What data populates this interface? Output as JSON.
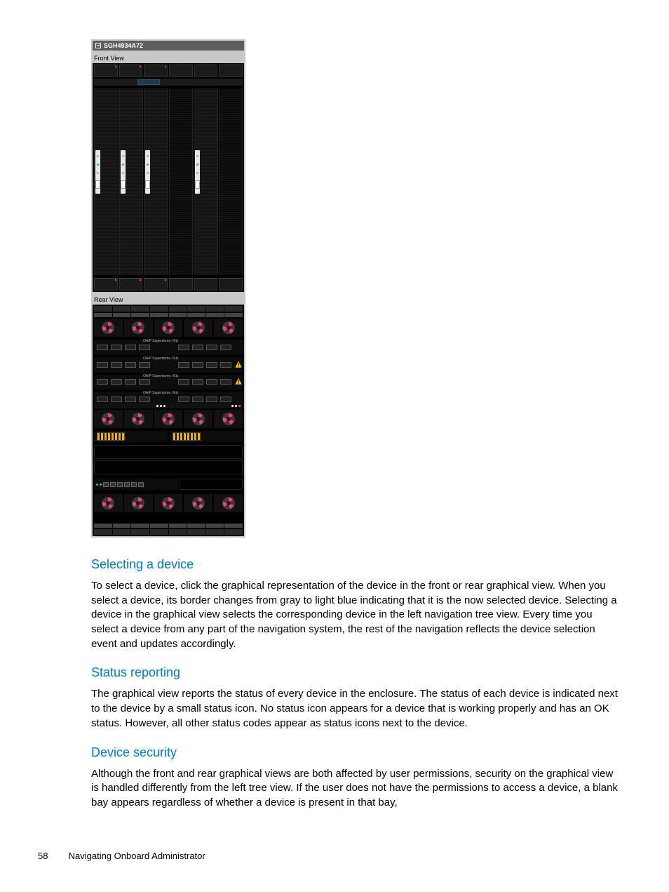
{
  "colors": {
    "heading": "#007dba",
    "body_text": "#000000",
    "page_bg": "#ffffff",
    "panel_bg": "#c8c8c8",
    "titlebar_bg": "#5e5e5e",
    "titlebar_text": "#ffffff",
    "enclosure_bg": "#000000",
    "led_green": "#2ecc40",
    "led_pink": "#ff3d7f",
    "led_blue": "#2aa7ff",
    "warn_fill": "#f5c518",
    "warn_stroke": "#000000",
    "fan_accent": "#ff3d7f",
    "fan_body": "#3a3a3a"
  },
  "screenshot": {
    "titlebar_id": "SGH4934A72",
    "front_label": "Front View",
    "rear_label": "Rear View",
    "front": {
      "top_half_slots": 6,
      "top_half_active": [
        true,
        true,
        true,
        false,
        false,
        false
      ],
      "blades": [
        {
          "populated": true,
          "status_pad": true
        },
        {
          "populated": true,
          "status_pad": true
        },
        {
          "populated": true,
          "status_pad": true
        },
        {
          "populated": false,
          "status_pad": false
        },
        {
          "populated": true,
          "status_pad": true
        },
        {
          "populated": false,
          "status_pad": false
        }
      ],
      "bottom_half_slots": 6,
      "bottom_half_active": [
        true,
        true,
        true,
        false,
        false,
        false
      ]
    },
    "rear": {
      "fan_rows": 3,
      "fans_per_row": 5,
      "interconnects": [
        {
          "label": "OA/P Superdome / Etc",
          "warn": false
        },
        {
          "label": "OA/P Superdome / Etc",
          "warn": true
        },
        {
          "label": "OA/P Superdome / Etc",
          "warn": true
        },
        {
          "label": "OA/P Superdome / Etc",
          "warn": false
        }
      ],
      "psu_dots_left": [
        "#ffffff",
        "#ffffff",
        "#ffffff"
      ],
      "psu_dots_right": [
        "#ffffff",
        "#ffffff",
        "#ff3d7f"
      ],
      "oa_led_blue": "#2aa7ff",
      "oa_led_green": "#2ecc40"
    }
  },
  "sections": [
    {
      "heading": "Selecting a device",
      "body": "To select a device, click the graphical representation of the device in the front or rear graphical view. When you select a device, its border changes from gray to light blue indicating that it is the now selected device. Selecting a device in the graphical view selects the corresponding device in the left navigation tree view. Every time you select a device from any part of the navigation system, the rest of the navigation reflects the device selection event and updates accordingly."
    },
    {
      "heading": "Status reporting",
      "body": "The graphical view reports the status of every device in the enclosure. The status of each device is indicated next to the device by a small status icon. No status icon appears for a device that is working properly and has an OK status. However, all other status codes appear as status icons next to the device."
    },
    {
      "heading": "Device security",
      "body": "Although the front and rear graphical views are both affected by user permissions, security on the graphical view is handled differently from the left tree view. If the user does not have the permissions to access a device, a blank bay appears regardless of whether a device is present in that bay,"
    }
  ],
  "footer": {
    "page_number": "58",
    "chapter": "Navigating Onboard Administrator"
  }
}
